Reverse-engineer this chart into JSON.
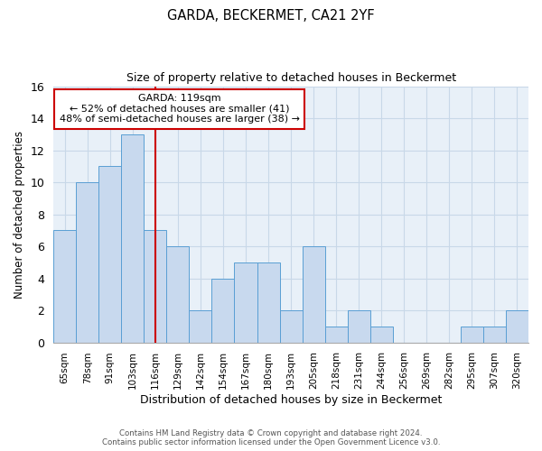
{
  "title": "GARDA, BECKERMET, CA21 2YF",
  "subtitle": "Size of property relative to detached houses in Beckermet",
  "xlabel": "Distribution of detached houses by size in Beckermet",
  "ylabel": "Number of detached properties",
  "categories": [
    "65sqm",
    "78sqm",
    "91sqm",
    "103sqm",
    "116sqm",
    "129sqm",
    "142sqm",
    "154sqm",
    "167sqm",
    "180sqm",
    "193sqm",
    "205sqm",
    "218sqm",
    "231sqm",
    "244sqm",
    "256sqm",
    "269sqm",
    "282sqm",
    "295sqm",
    "307sqm",
    "320sqm"
  ],
  "values": [
    7,
    10,
    11,
    13,
    7,
    6,
    2,
    4,
    5,
    5,
    2,
    6,
    1,
    2,
    1,
    0,
    0,
    0,
    1,
    1,
    2
  ],
  "bar_color": "#c8d9ee",
  "bar_edge_color": "#5a9fd4",
  "vline_index": 4,
  "annotation_title": "GARDA: 119sqm",
  "annotation_line1": "← 52% of detached houses are smaller (41)",
  "annotation_line2": "48% of semi-detached houses are larger (38) →",
  "annotation_box_color": "#ffffff",
  "annotation_box_edge": "#cc0000",
  "vline_color": "#cc0000",
  "ylim": [
    0,
    16
  ],
  "yticks": [
    0,
    2,
    4,
    6,
    8,
    10,
    12,
    14,
    16
  ],
  "footer1": "Contains HM Land Registry data © Crown copyright and database right 2024.",
  "footer2": "Contains public sector information licensed under the Open Government Licence v3.0.",
  "grid_color": "#c8d8e8",
  "background_color": "#e8f0f8"
}
